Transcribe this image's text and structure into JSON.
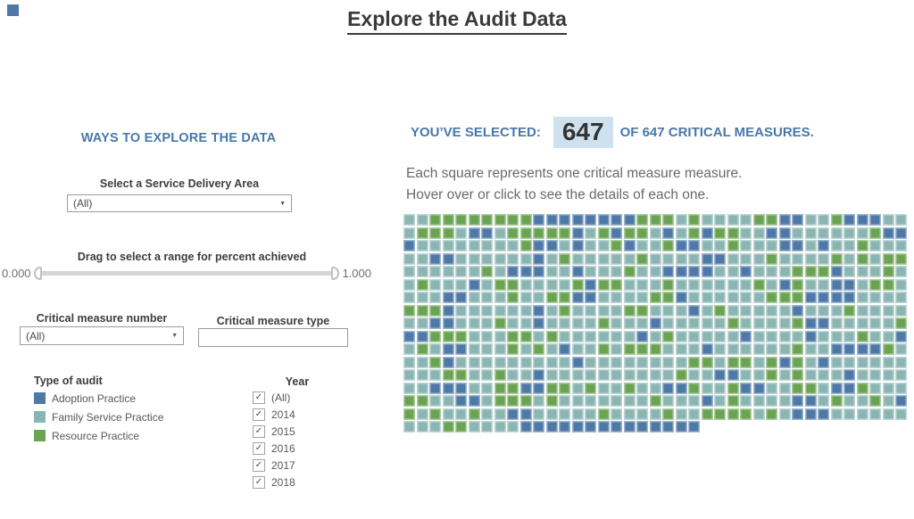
{
  "app": {
    "accent_square_color": "#4e79a7"
  },
  "title": "Explore the Audit Data",
  "icons": {
    "dropdown_caret": "▼",
    "checkbox_check": "✓"
  },
  "left_panel": {
    "header": "WAYS TO EXPLORE THE DATA",
    "service_area_filter": {
      "label": "Select a Service Delivery Area",
      "value": "(All)"
    },
    "percent_slider": {
      "label": "Drag to select a range for percent achieved",
      "min_value": "0.000",
      "max_value": "1.000"
    },
    "measure_number_filter": {
      "label": "Critical measure number",
      "value": "(All)"
    },
    "measure_type_filter": {
      "label": "Critical measure type",
      "value": ""
    },
    "audit_type_legend": {
      "title": "Type of audit",
      "items": [
        {
          "label": "Adoption Practice",
          "color": "#4e79a7"
        },
        {
          "label": "Family Service Practice",
          "color": "#8ab5b2"
        },
        {
          "label": "Resource Practice",
          "color": "#6aa353"
        }
      ]
    },
    "year_filter": {
      "title": "Year",
      "options": [
        {
          "label": "(All)",
          "checked": true
        },
        {
          "label": "2014",
          "checked": true
        },
        {
          "label": "2015",
          "checked": true
        },
        {
          "label": "2016",
          "checked": true
        },
        {
          "label": "2017",
          "checked": true
        },
        {
          "label": "2018",
          "checked": true
        }
      ]
    }
  },
  "right_panel": {
    "selection_header": {
      "prefix": "YOU’VE SELECTED:",
      "count": "647",
      "suffix": "OF 647 CRITICAL MEASURES.",
      "count_highlight_color": "#cde1ee"
    },
    "description_line1": "Each square represents one critical measure measure.",
    "description_line2": "Hover over or click to see the details of each one."
  },
  "chart_data": {
    "type": "heatmap",
    "title": "Critical measures waffle grid (one square per critical measure)",
    "columns": 39,
    "total_squares": 647,
    "legend": {
      "b": "Adoption Practice",
      "t": "Family Service Practice",
      "g": "Resource Practice"
    },
    "color_key": {
      "b": "#4e79a7",
      "t": "#8ab5b2",
      "g": "#6aa353"
    },
    "rows": [
      "ttggggggggbbbbbbbbgggtgttttggbbttgbbbtt",
      "tgggtbbtgggggbtgbggtbtgbggttbbttttttgbb",
      "bttttttttgbbtbttgbttgbbttgtttbbtbttgttt",
      "ttbbttttttbtgtttttgttttbbtttgttttgtgtgg",
      "ttttttgtbbbttbtttgttbbbbttbtttgggbtttgt",
      "tgtttbtggttttgbggtttgttttttgtbgttbbtggt",
      "tttbbtttgttggbbttttggbttttttgggbbbbtttt",
      "gggbttttttbtgttttggtttbtgtttttbtttgtttt",
      "ttbbtttgttbttttgtttbtttttgttttgbbtttttg",
      "bbgggtttggtgttttttbtgtttttbttttbtttgttb",
      "tgtbbtttgtgtbttgtgggtttbttttttgttbbbbgt",
      "ttgbtttttttttbttttttttggtggtgbgtbtttttt",
      "tttggttgttbttttttttttgttbbttgtgtttbtttt",
      "ttbbbttggbbggtgttgttbbgttgbbttggtbbgttt",
      "ggttbbtgggtgtttttttgtttbtgttttbbtgttgtb",
      "gtgttgttbbtttttgttttgttggggtgtbbbtttttt",
      "tttggttttbbbbbbbbbbbbbb"
    ]
  }
}
